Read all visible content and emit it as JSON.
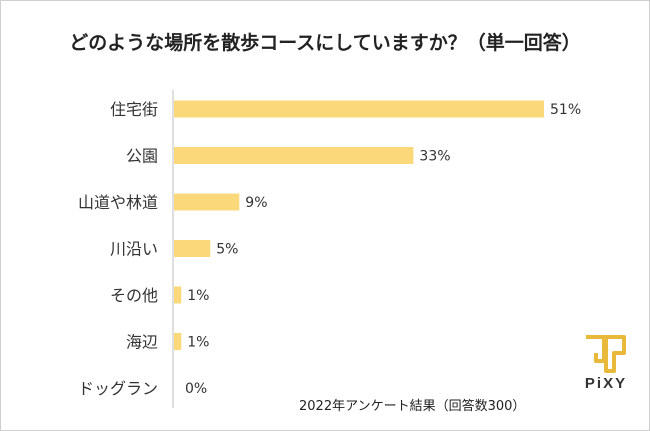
{
  "title": "どのような場所を散歩コースにしていますか？（単一回答）",
  "footnote": "2022年アンケート結果（回答数300）",
  "logo": {
    "word": "PiXY",
    "color": "#e8b93a",
    "text_color": "#333333"
  },
  "colors": {
    "bar": "#fbd97a",
    "axis": "#bfbfbf",
    "text": "#333333"
  },
  "chart_data": {
    "type": "bar",
    "orientation": "horizontal",
    "title": "どのような場所を散歩コースにしていますか？（単一回答）",
    "categories": [
      "住宅街",
      "公園",
      "山道や林道",
      "川沿い",
      "その他",
      "海辺",
      "ドッグラン"
    ],
    "values": [
      51,
      33,
      9,
      5,
      1,
      1,
      0
    ],
    "value_labels": [
      "51%",
      "33%",
      "9%",
      "5%",
      "1%",
      "1%",
      "0%"
    ],
    "unit": "%",
    "grid": false,
    "legend": "none"
  }
}
